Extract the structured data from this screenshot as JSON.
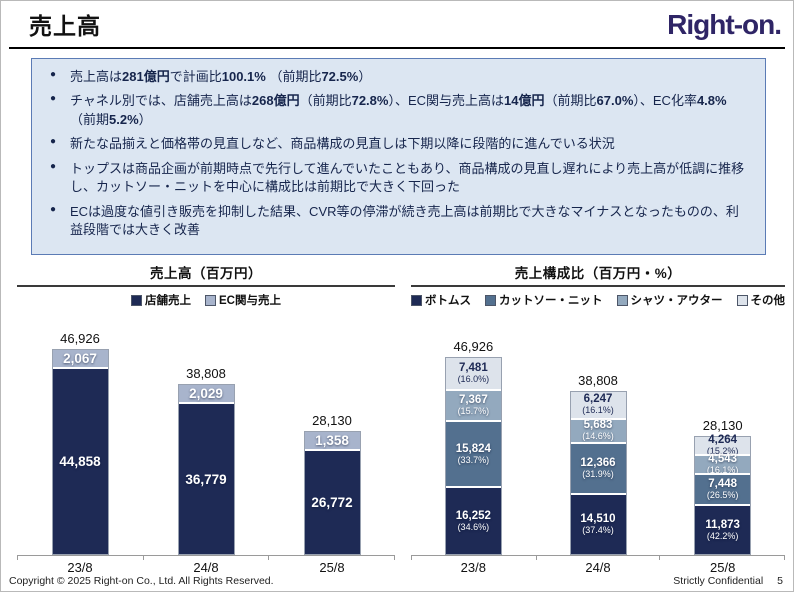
{
  "header": {
    "title": "売上高",
    "logo": "Right-on."
  },
  "summary_box": {
    "bullets": [
      {
        "runs": [
          {
            "t": "売上高は"
          },
          {
            "t": "281億円",
            "b": true
          },
          {
            "t": "で計画比"
          },
          {
            "t": "100.1%",
            "b": true
          },
          {
            "t": " （前期比"
          },
          {
            "t": "72.5%",
            "b": true
          },
          {
            "t": "）"
          }
        ]
      },
      {
        "runs": [
          {
            "t": "チャネル別では、店舗売上高は"
          },
          {
            "t": "268億円",
            "b": true
          },
          {
            "t": "（前期比"
          },
          {
            "t": "72.8%",
            "b": true
          },
          {
            "t": "）、EC関与売上高は"
          },
          {
            "t": "14億円",
            "b": true
          },
          {
            "t": "（前期比"
          },
          {
            "t": "67.0%",
            "b": true
          },
          {
            "t": "）、EC化率"
          },
          {
            "t": "4.8%",
            "b": true
          },
          {
            "t": "（前期"
          },
          {
            "t": "5.2%",
            "b": true
          },
          {
            "t": "）"
          }
        ]
      },
      {
        "runs": [
          {
            "t": "新たな品揃えと価格帯の見直しなど、商品構成の見直しは下期以降に段階的に進んでいる状況"
          }
        ]
      },
      {
        "runs": [
          {
            "t": "トップスは商品企画が前期時点で先行して進んでいたこともあり、商品構成の見直し遅れにより売上高が低調に推移し、カットソー・ニットを中心に構成比は前期比で大きく下回った"
          }
        ]
      },
      {
        "runs": [
          {
            "t": "ECは過度な値引き販売を抑制した結果、CVR等の停滞が続き売上高は前期比で大きなマイナスとなったものの、利益段階では大きく改善"
          }
        ]
      }
    ]
  },
  "chart_data": [
    {
      "id": "sales-by-channel",
      "type": "bar",
      "stacked": true,
      "title": "売上高（百万円）",
      "categories": [
        "23/8",
        "24/8",
        "25/8"
      ],
      "totals": [
        46926,
        38808,
        28130
      ],
      "legend_position": "top",
      "grid": false,
      "ylim": [
        0,
        46926
      ],
      "series": [
        {
          "name": "店舗売上",
          "color": "#1e2a55",
          "text": "#ffffff",
          "values": [
            44858,
            36779,
            26772
          ]
        },
        {
          "name": "EC関与売上",
          "color": "#a8b4cc",
          "text": "#ffffff",
          "values": [
            2067,
            2029,
            1358
          ]
        }
      ]
    },
    {
      "id": "sales-composition",
      "type": "bar",
      "stacked": true,
      "title": "売上構成比（百万円・%）",
      "categories": [
        "23/8",
        "24/8",
        "25/8"
      ],
      "totals": [
        46926,
        38808,
        28130
      ],
      "legend_position": "top",
      "grid": false,
      "ylim": [
        0,
        46926
      ],
      "series": [
        {
          "name": "ボトムス",
          "color": "#1e2a55",
          "text": "#ffffff",
          "values": [
            16252,
            14510,
            11873
          ],
          "pct": [
            "(34.6%)",
            "(37.4%)",
            "(42.2%)"
          ]
        },
        {
          "name": "カットソー・ニット",
          "color": "#53708f",
          "text": "#ffffff",
          "values": [
            15824,
            12366,
            7448
          ],
          "pct": [
            "(33.7%)",
            "(31.9%)",
            "(26.5%)"
          ]
        },
        {
          "name": "シャツ・アウター",
          "color": "#93a9be",
          "text": "#ffffff",
          "values": [
            7367,
            5683,
            4543
          ],
          "pct": [
            "(15.7%)",
            "(14.6%)",
            "(16.1%)"
          ]
        },
        {
          "name": "その他",
          "color": "#dde3eb",
          "text": "#1e2a55",
          "values": [
            7481,
            6247,
            4264
          ],
          "pct": [
            "(16.0%)",
            "(16.1%)",
            "(15.2%)"
          ]
        }
      ]
    }
  ],
  "footer": {
    "copyright": "Copyright © 2025 Right-on Co., Ltd.  All Rights Reserved.",
    "confidential": "Strictly Confidential",
    "page": "5"
  }
}
